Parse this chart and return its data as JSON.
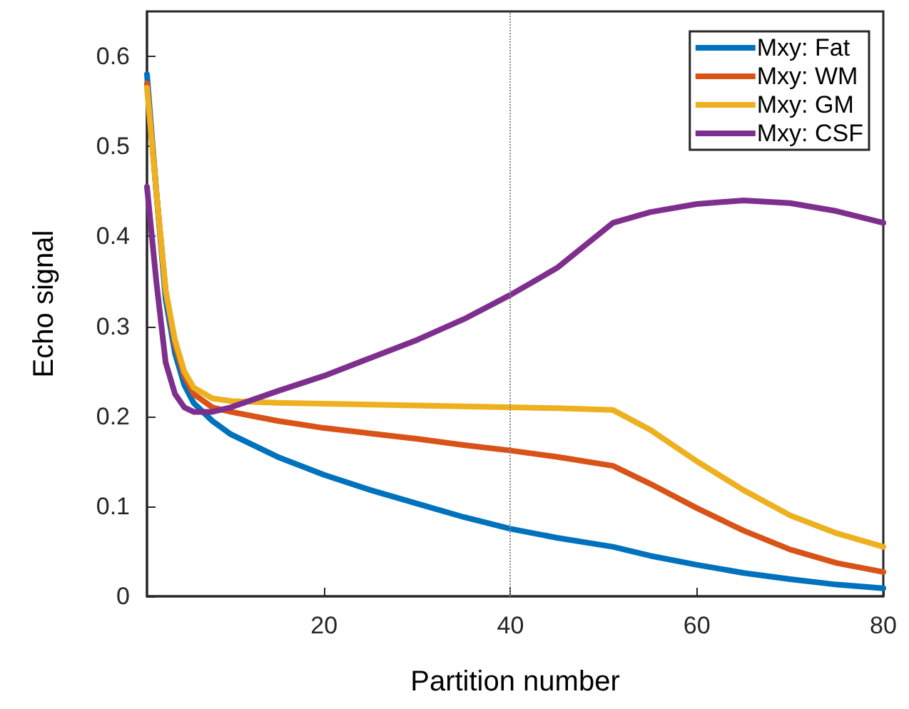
{
  "chart_data": {
    "type": "line",
    "xlabel": "Partition number",
    "ylabel": "Echo signal",
    "x": [
      1,
      2,
      3,
      4,
      5,
      6,
      8,
      10,
      15,
      20,
      25,
      30,
      35,
      40,
      45,
      51,
      55,
      60,
      65,
      70,
      75,
      80
    ],
    "series": [
      {
        "name": "Mxy: Fat",
        "color": "#0072bd",
        "values": [
          0.58,
          0.45,
          0.33,
          0.27,
          0.235,
          0.215,
          0.195,
          0.18,
          0.155,
          0.135,
          0.118,
          0.103,
          0.088,
          0.075,
          0.065,
          0.055,
          0.045,
          0.035,
          0.026,
          0.019,
          0.013,
          0.009
        ]
      },
      {
        "name": "Mxy: WM",
        "color": "#d95319",
        "values": [
          0.57,
          0.45,
          0.34,
          0.28,
          0.245,
          0.225,
          0.21,
          0.205,
          0.195,
          0.187,
          0.181,
          0.175,
          0.168,
          0.162,
          0.155,
          0.145,
          0.125,
          0.098,
          0.073,
          0.052,
          0.037,
          0.027
        ]
      },
      {
        "name": "Mxy: GM",
        "color": "#edb120",
        "values": [
          0.565,
          0.45,
          0.34,
          0.285,
          0.25,
          0.232,
          0.22,
          0.217,
          0.215,
          0.214,
          0.213,
          0.212,
          0.211,
          0.21,
          0.209,
          0.207,
          0.185,
          0.15,
          0.118,
          0.09,
          0.07,
          0.055
        ]
      },
      {
        "name": "Mxy: CSF",
        "color": "#7e2f8e",
        "values": [
          0.455,
          0.35,
          0.26,
          0.225,
          0.21,
          0.205,
          0.205,
          0.21,
          0.228,
          0.245,
          0.265,
          0.285,
          0.308,
          0.335,
          0.365,
          0.415,
          0.427,
          0.436,
          0.44,
          0.437,
          0.428,
          0.415
        ]
      }
    ],
    "xlim": [
      1,
      80
    ],
    "xticks": [
      20,
      40,
      60,
      80
    ],
    "ylim": [
      0,
      0.65
    ],
    "yticks": [
      0,
      0.1,
      0.2,
      0.3,
      0.4,
      0.5,
      0.6
    ],
    "ref_lines": [
      {
        "axis": "x",
        "value": 40,
        "color": "#888888",
        "line_style": "dotted"
      }
    ],
    "grid": false,
    "legend": "top right",
    "marker": "none",
    "line_style": "solid"
  }
}
